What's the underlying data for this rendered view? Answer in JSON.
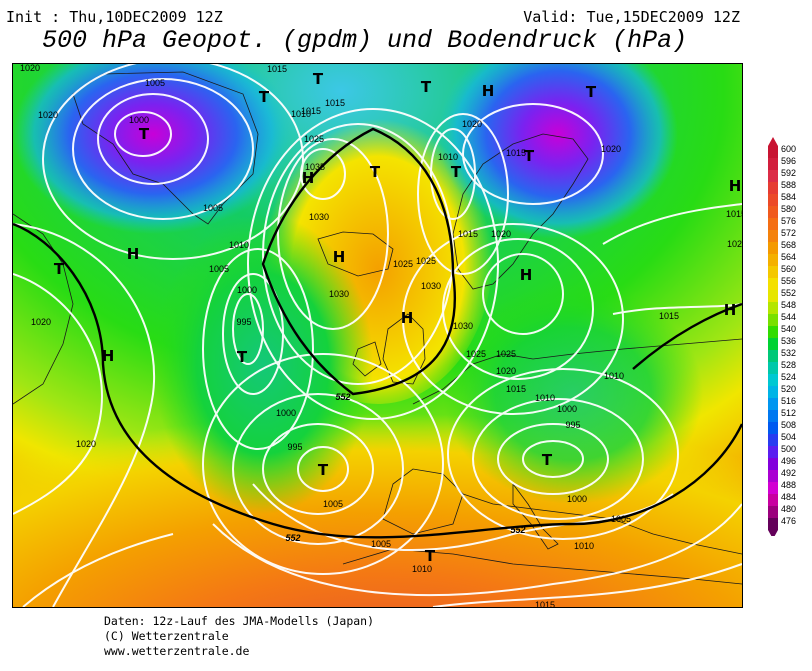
{
  "header": {
    "init": "Init : Thu,10DEC2009 12Z",
    "valid": "Valid: Tue,15DEC2009 12Z",
    "title": "500 hPa Geopot. (gpdm) und Bodendruck (hPa)"
  },
  "map": {
    "pressure_labels": [
      "1020",
      "1005",
      "1000",
      "1020",
      "1015",
      "1005",
      "1010",
      "1005",
      "1000",
      "995",
      "1020",
      "1020",
      "1035",
      "1030",
      "1030",
      "1025",
      "1025",
      "1015",
      "1010",
      "1015",
      "1015",
      "1020",
      "1020",
      "1010",
      "1015",
      "1020",
      "1025",
      "1030",
      "1030",
      "1025",
      "1025",
      "1020",
      "1015",
      "1010",
      "1000",
      "995",
      "1000",
      "995",
      "1005",
      "1005",
      "1010",
      "1015",
      "1015",
      "1010",
      "1005",
      "1020",
      "1015",
      "1000",
      "1010"
    ],
    "pressure_centers": [
      "T",
      "T",
      "T",
      "T",
      "T",
      "T",
      "T",
      "T",
      "T",
      "T",
      "T",
      "T",
      "T",
      "H",
      "H",
      "H",
      "H",
      "H",
      "H",
      "H",
      "H",
      "H"
    ],
    "contour_labels": [
      "552",
      "552",
      "552"
    ]
  },
  "colorbar": {
    "levels": [
      600,
      596,
      592,
      588,
      584,
      580,
      576,
      572,
      568,
      564,
      560,
      556,
      552,
      548,
      544,
      540,
      536,
      532,
      528,
      524,
      520,
      516,
      512,
      508,
      504,
      500,
      496,
      492,
      488,
      484,
      480,
      476
    ],
    "colors": [
      "#c81432",
      "#d21e3c",
      "#dc2c46",
      "#e63c32",
      "#ec4a28",
      "#f05a1e",
      "#f46e14",
      "#f4820c",
      "#f49a00",
      "#f4b000",
      "#f4c800",
      "#f4e000",
      "#e6e600",
      "#b4e600",
      "#78e000",
      "#32dc00",
      "#00d232",
      "#00c878",
      "#00c8aa",
      "#00c8d2",
      "#00b4e6",
      "#0096f0",
      "#0078f0",
      "#005af0",
      "#283cf0",
      "#5a1ef0",
      "#8200dc",
      "#aa00d2",
      "#d200d2",
      "#c800a0",
      "#9b007d",
      "#64005a"
    ]
  },
  "footer": {
    "line1": "Daten: 12z-Lauf des JMA-Modells (Japan)",
    "line2": "(C) Wetterzentrale",
    "line3": "www.wetterzentrale.de"
  }
}
